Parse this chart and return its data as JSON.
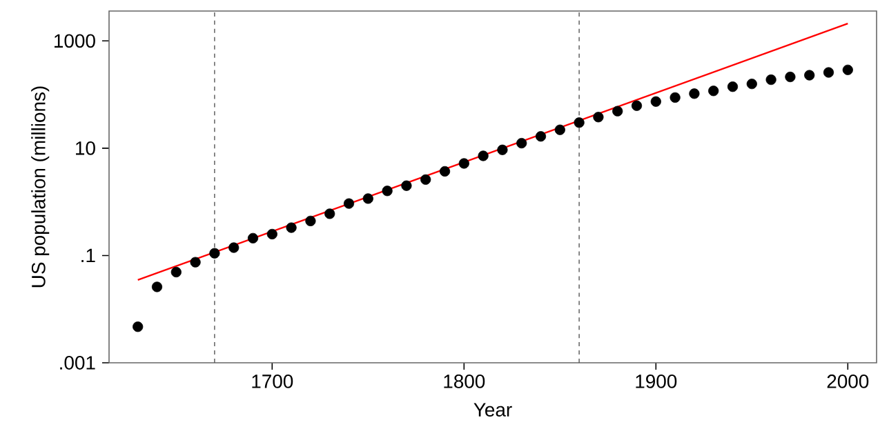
{
  "chart_data": {
    "type": "scatter",
    "xlabel": "Year",
    "ylabel": "US population (millions)",
    "x": [
      1630,
      1640,
      1650,
      1660,
      1670,
      1680,
      1690,
      1700,
      1710,
      1720,
      1730,
      1740,
      1750,
      1760,
      1770,
      1780,
      1790,
      1800,
      1810,
      1820,
      1830,
      1840,
      1850,
      1860,
      1870,
      1880,
      1890,
      1900,
      1910,
      1920,
      1930,
      1940,
      1950,
      1960,
      1970,
      1980,
      1990,
      2000
    ],
    "series": [
      {
        "color": "#000000",
        "marker": "circle",
        "values": [
          0.0047,
          0.026,
          0.049,
          0.075,
          0.11,
          0.14,
          0.21,
          0.25,
          0.33,
          0.44,
          0.6,
          0.93,
          1.15,
          1.6,
          2.0,
          2.6,
          3.7,
          5.2,
          7.2,
          9.3,
          12.4,
          16.6,
          22,
          30,
          38,
          49,
          62,
          74,
          88,
          104,
          117,
          140,
          158,
          189,
          213,
          229,
          258,
          288
        ]
      },
      {
        "type": "line",
        "marker": "none",
        "color": "#ff0000",
        "x": [
          1630,
          2000
        ],
        "values": [
          0.035,
          2100
        ]
      }
    ],
    "xlim": [
      1615,
      2015
    ],
    "ylim": [
      0.001,
      3600
    ],
    "log": "y",
    "xticks": [
      1700,
      1800,
      1900,
      2000
    ],
    "yticks": [
      {
        "value": 0.001,
        "label": ".001"
      },
      {
        "value": 0.1,
        "label": ".1"
      },
      10,
      1000
    ],
    "ref_lines": [
      {
        "axis": "x",
        "value": 1670,
        "color": "#555555",
        "line_style": "dashed"
      },
      {
        "axis": "x",
        "value": 1860,
        "color": "#555555",
        "line_style": "dashed"
      }
    ],
    "grid": false
  }
}
